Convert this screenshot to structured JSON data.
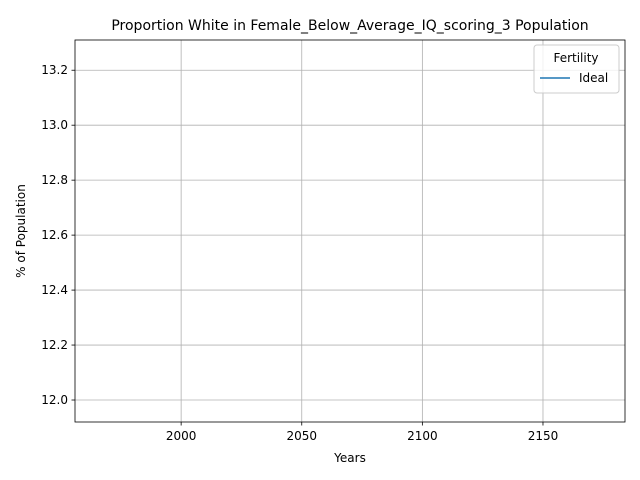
{
  "chart_data": {
    "type": "line",
    "title": "Proportion White in Female_Below_Average_IQ_scoring_3 Population",
    "xlabel": "Years",
    "ylabel": "% of Population",
    "xlim": [
      1956,
      2184
    ],
    "ylim": [
      11.92,
      13.31
    ],
    "x_ticks": [
      2000,
      2050,
      2100,
      2150
    ],
    "y_ticks": [
      12.0,
      12.2,
      12.4,
      12.6,
      12.8,
      13.0,
      13.2
    ],
    "x_tick_labels": [
      "2000",
      "2050",
      "2100",
      "2150"
    ],
    "y_tick_labels": [
      "12.0",
      "12.2",
      "12.4",
      "12.6",
      "12.8",
      "13.0",
      "13.2"
    ],
    "grid": true,
    "legend": {
      "title": "Fertility",
      "position": "top-right"
    },
    "series": [
      {
        "name": "Ideal",
        "color": "#1f77b4",
        "x": [],
        "y": []
      }
    ]
  }
}
